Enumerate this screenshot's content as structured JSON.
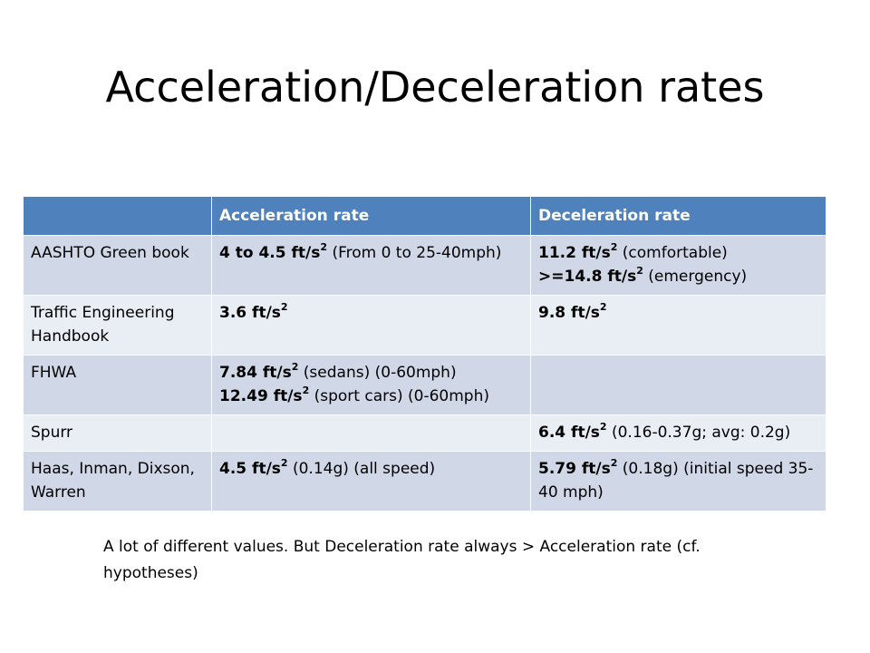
{
  "slide": {
    "title": "Acceleration/Deceleration rates"
  },
  "table": {
    "headers": [
      "",
      "Acceleration rate",
      "Deceleration rate"
    ],
    "unit": "ft/s",
    "exp": "2",
    "rows": [
      {
        "source": "AASHTO Green book",
        "accel": {
          "v1": "4 to 4.5",
          "t1": "(From 0 to 25-40mph)"
        },
        "decel": {
          "v1": "11.2",
          "t1": "(comfortable)",
          "v2": ">=14.8",
          "t2": "(emergency)"
        }
      },
      {
        "source": "Traffic Engineering Handbook",
        "accel": {
          "v1": "3.6"
        },
        "decel": {
          "v1": "9.8"
        }
      },
      {
        "source": "FHWA",
        "accel": {
          "v1": "7.84",
          "t1": "(sedans) (0-60mph)",
          "v2": "12.49",
          "t2": "(sport cars) (0-60mph)"
        },
        "decel": {}
      },
      {
        "source": "Spurr",
        "accel": {},
        "decel": {
          "v1": "6.4",
          "t1": "(0.16-0.37g; avg: 0.2g)"
        }
      },
      {
        "source": "Haas, Inman, Dixson, Warren",
        "accel": {
          "v1": "4.5",
          "t1": "(0.14g) (all speed)"
        },
        "decel": {
          "v1": "5.79",
          "t1": "(0.18g) (initial speed 35-40 mph)"
        }
      }
    ]
  },
  "note": "A lot of different values. But Deceleration rate always > Acceleration rate (cf. hypotheses)"
}
